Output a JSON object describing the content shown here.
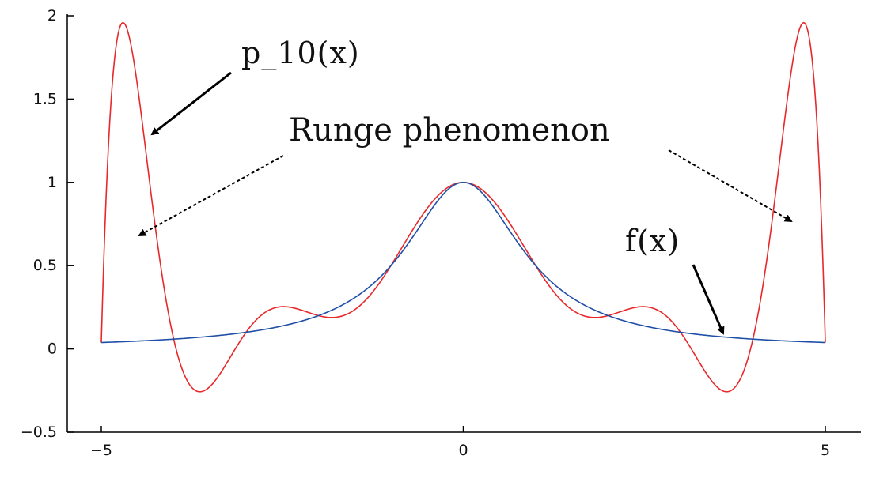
{
  "chart_data": {
    "type": "line",
    "title": "",
    "xlabel": "",
    "ylabel": "",
    "xlim": [
      -5,
      5
    ],
    "ylim": [
      -0.5,
      2
    ],
    "x_ticks": [
      "−5",
      "0",
      "5"
    ],
    "y_ticks": [
      "−0.5",
      "0",
      "0.5",
      "1",
      "1.5",
      "2"
    ],
    "x_tick_values": [
      -5,
      0,
      5
    ],
    "y_tick_values": [
      -0.5,
      0,
      0.5,
      1,
      1.5,
      2
    ],
    "grid": false,
    "series": [
      {
        "key": "f",
        "color": "#1f4fa6",
        "function": "1/(1+x^2)",
        "x": [
          -5,
          -4,
          -3,
          -2,
          -1,
          0,
          1,
          2,
          3,
          4,
          5
        ],
        "values": [
          0.038,
          0.059,
          0.1,
          0.2,
          0.5,
          1,
          0.5,
          0.2,
          0.1,
          0.059,
          0.038
        ]
      },
      {
        "key": "p10",
        "color": "#e8282a",
        "function": "degree-10 interpolant of f at x = -5..5",
        "x": [
          -5,
          -4.8,
          -4.5,
          -4,
          -3.6,
          -3,
          -2.5,
          -2,
          -1,
          0,
          1,
          2,
          2.5,
          3,
          3.6,
          4,
          4.5,
          4.8,
          5
        ],
        "values": [
          0.038,
          1.81,
          1.58,
          0.059,
          -0.25,
          0.1,
          0.25,
          0.2,
          0.5,
          1,
          0.5,
          0.2,
          0.25,
          0.1,
          -0.25,
          0.059,
          1.58,
          1.81,
          0.038
        ]
      }
    ],
    "annotations": {
      "p10_label": "p_10(x)",
      "runge_label": "Runge phenomenon",
      "f_label": "f(x)"
    }
  }
}
